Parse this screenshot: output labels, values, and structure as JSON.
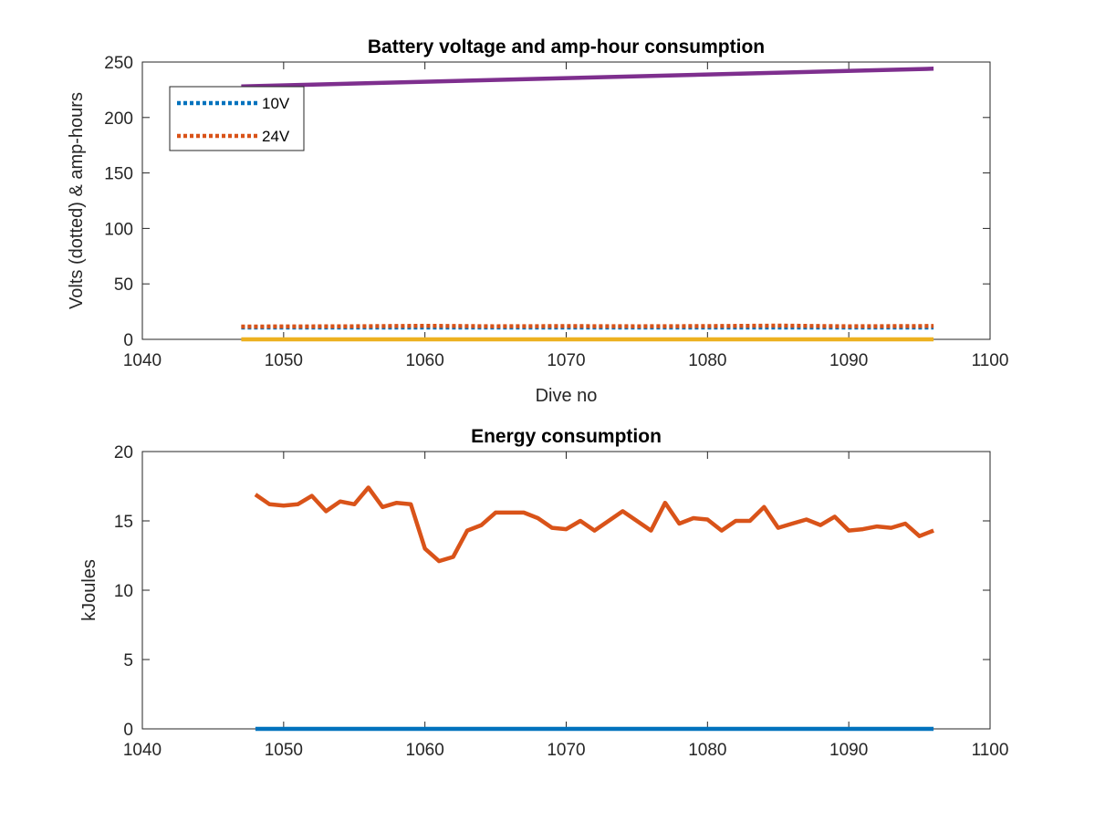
{
  "chart_data": [
    {
      "type": "line",
      "title": "Battery voltage and amp-hour consumption",
      "xlabel": "Dive no",
      "ylabel": "Volts (dotted) & amp-hours",
      "xlim": [
        1040,
        1100
      ],
      "ylim": [
        0,
        250
      ],
      "xticks": [
        1040,
        1050,
        1060,
        1070,
        1080,
        1090,
        1100
      ],
      "yticks": [
        0,
        50,
        100,
        150,
        200,
        250
      ],
      "grid": false,
      "legend_position": "top-left",
      "series": [
        {
          "name": "10V",
          "color": "#0072BD",
          "style": "dotted",
          "x": [
            1047,
            1096
          ],
          "y": [
            10.7,
            10.7
          ]
        },
        {
          "name": "24V",
          "color": "#D95319",
          "style": "dotted",
          "x": [
            1047,
            1055,
            1060,
            1065,
            1070,
            1075,
            1080,
            1085,
            1090,
            1096
          ],
          "y": [
            11.5,
            11.8,
            12.2,
            11.8,
            11.9,
            11.8,
            11.9,
            12.3,
            11.8,
            12.0
          ]
        },
        {
          "color": "#EDB120",
          "style": "solid",
          "x": [
            1047,
            1096
          ],
          "y": [
            0,
            0
          ]
        },
        {
          "color": "#7E2F8E",
          "style": "solid",
          "x": [
            1047,
            1096
          ],
          "y": [
            228,
            244
          ]
        }
      ]
    },
    {
      "type": "line",
      "title": "Energy consumption",
      "xlabel": "",
      "ylabel": "kJoules",
      "xlim": [
        1040,
        1100
      ],
      "ylim": [
        0,
        20
      ],
      "xticks": [
        1040,
        1050,
        1060,
        1070,
        1080,
        1090,
        1100
      ],
      "yticks": [
        0,
        5,
        10,
        15,
        20
      ],
      "grid": false,
      "series": [
        {
          "color": "#0072BD",
          "style": "solid",
          "x": [
            1048,
            1096
          ],
          "y": [
            0,
            0
          ]
        },
        {
          "color": "#D95319",
          "style": "solid",
          "x": [
            1048,
            1049,
            1050,
            1051,
            1052,
            1053,
            1054,
            1055,
            1056,
            1057,
            1058,
            1059,
            1060,
            1061,
            1062,
            1063,
            1064,
            1065,
            1066,
            1067,
            1068,
            1069,
            1070,
            1071,
            1072,
            1073,
            1074,
            1075,
            1076,
            1077,
            1078,
            1079,
            1080,
            1081,
            1082,
            1083,
            1084,
            1085,
            1086,
            1087,
            1088,
            1089,
            1090,
            1091,
            1092,
            1093,
            1094,
            1095,
            1096
          ],
          "y": [
            16.9,
            16.2,
            16.1,
            16.2,
            16.8,
            15.7,
            16.4,
            16.2,
            17.4,
            16.0,
            16.3,
            16.2,
            13.0,
            12.1,
            12.4,
            14.3,
            14.7,
            15.6,
            15.6,
            15.6,
            15.2,
            14.5,
            14.4,
            15.0,
            14.3,
            15.0,
            15.7,
            15.0,
            14.3,
            16.3,
            14.8,
            15.2,
            15.1,
            14.3,
            15.0,
            15.0,
            16.0,
            14.5,
            14.8,
            15.1,
            14.7,
            15.3,
            14.3,
            14.4,
            14.6,
            14.5,
            14.8,
            13.9,
            14.3
          ]
        }
      ]
    }
  ]
}
